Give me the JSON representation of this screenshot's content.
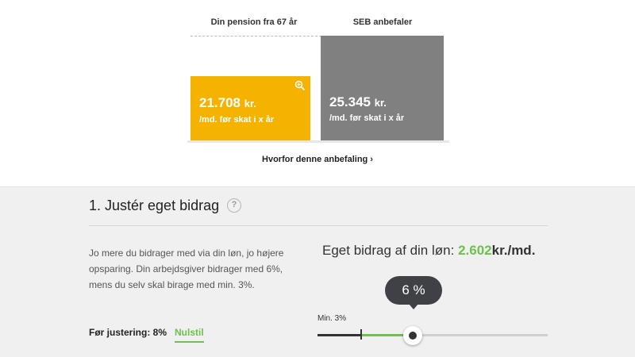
{
  "comparison": {
    "left_header": "Din pension fra 67 år",
    "right_header": "SEB anbefaler",
    "current": {
      "amount": "21.708",
      "unit": "kr.",
      "sub": "/md. før skat i x år"
    },
    "recommended": {
      "amount": "25.345",
      "unit": "kr.",
      "sub": "/md. før skat i x år"
    },
    "link": "Hvorfor denne anbefaling ›",
    "colors": {
      "current": "#f5b300",
      "recommended": "#808080"
    }
  },
  "section": {
    "title": "1. Justér eget bidrag",
    "help": "?",
    "description": "Jo mere du bidrager med via din løn, jo højere opsparing.  Din arbejdsgiver bidrager med 6%, mens du selv skal birage med min. 3%.",
    "contribution_label": "Eget bidrag af din løn:",
    "contribution_value": "2.602",
    "contribution_unit": "kr./md.",
    "slider": {
      "tooltip": "6 %",
      "min_label": "Min. 3%",
      "value_percent": 6,
      "min_percent": 3
    },
    "before_label": "Før justering: 8%",
    "reset_label": "Nulstil",
    "accent": "#6cc24a"
  }
}
